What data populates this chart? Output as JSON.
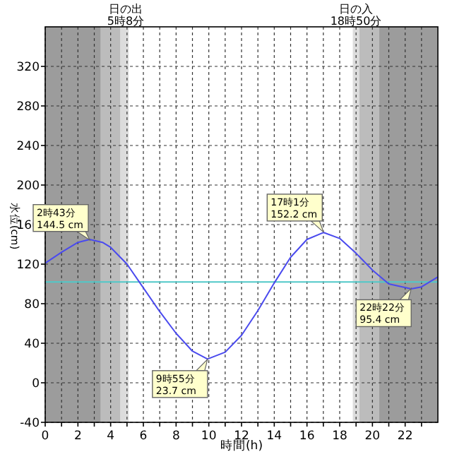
{
  "chart_data": {
    "type": "line",
    "xlabel": "時間(h)",
    "ylabel": "水位(cm)",
    "xlim": [
      0,
      24
    ],
    "ylim": [
      -40,
      360
    ],
    "xticks": [
      0,
      {
        "value": 1,
        "label": null
      },
      2,
      {
        "value": 3,
        "label": null
      },
      4,
      {
        "value": 5,
        "label": null
      },
      6,
      {
        "value": 7,
        "label": null
      },
      8,
      {
        "value": 9,
        "label": null
      },
      10,
      {
        "value": 11,
        "label": null
      },
      12,
      {
        "value": 13,
        "label": null
      },
      14,
      {
        "value": 15,
        "label": null
      },
      16,
      {
        "value": 17,
        "label": null
      },
      18,
      {
        "value": 19,
        "label": null
      },
      20,
      {
        "value": 21,
        "label": null
      },
      22,
      {
        "value": 23,
        "label": null
      }
    ],
    "yticks": [
      -40,
      0,
      40,
      80,
      120,
      160,
      200,
      240,
      280,
      320
    ],
    "grid": true,
    "marker": "none",
    "line_style": "solid",
    "series": [
      {
        "color": "#4a4aee",
        "x": [
          0,
          1,
          2,
          2.72,
          3.5,
          4,
          5,
          6,
          7,
          8,
          9,
          9.92,
          11,
          12,
          13,
          14,
          15,
          16,
          17.02,
          18,
          19,
          20,
          21,
          22.37,
          23,
          24
        ],
        "values": [
          121,
          132,
          142,
          145,
          142,
          137,
          120,
          96,
          72,
          50,
          32,
          24,
          31,
          48,
          73,
          101,
          127,
          145,
          152,
          146,
          131,
          114,
          100,
          95,
          97,
          107
        ]
      }
    ],
    "ref_lines": [
      {
        "axis": "y",
        "value": 102,
        "color": "#50c8c8"
      }
    ],
    "bands": [
      {
        "axis": "x",
        "from": 0,
        "to": 3.4,
        "color": "#9c9c9c"
      },
      {
        "axis": "x",
        "from": 3.4,
        "to": 4.6,
        "color": "#bcbcbc"
      },
      {
        "axis": "x",
        "from": 4.6,
        "to": 5.1,
        "color": "#dcdcdc"
      },
      {
        "axis": "x",
        "from": 18.8,
        "to": 19.2,
        "color": "#dcdcdc"
      },
      {
        "axis": "x",
        "from": 19.2,
        "to": 20.4,
        "color": "#bcbcbc"
      },
      {
        "axis": "x",
        "from": 20.4,
        "to": 24,
        "color": "#9c9c9c"
      }
    ],
    "annotations": [
      "日の出 5時8分",
      "日の入 18時50分",
      {
        "text": "2時43分 144.5 cm",
        "x": 2.72,
        "y": 144.5
      },
      {
        "text": "9時55分 23.7 cm",
        "x": 9.92,
        "y": 23.7
      },
      {
        "text": "17時1分 152.2 cm",
        "x": 17.02,
        "y": 152.2
      },
      {
        "text": "22時22分 95.4 cm",
        "x": 22.37,
        "y": 95.4
      }
    ]
  }
}
